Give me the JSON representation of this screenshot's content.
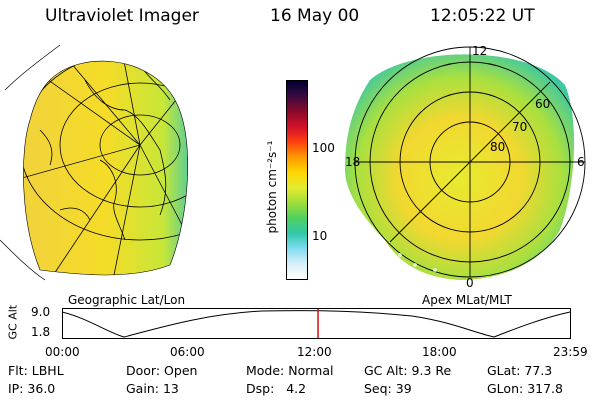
{
  "header": {
    "instrument": "Ultraviolet Imager",
    "date": "16 May 00",
    "time": "12:05:22 UT"
  },
  "colorbar": {
    "unit_label": "photon cm⁻²s⁻¹",
    "tick_labels": [
      "100",
      "10"
    ],
    "colors": [
      "#000033",
      "#3a0a40",
      "#8a0a2a",
      "#d0102a",
      "#ff4010",
      "#ff9a00",
      "#ffd400",
      "#e4ec30",
      "#9fdd3a",
      "#4fd060",
      "#30c8a8",
      "#80dcf0",
      "#d8f0f8",
      "#ffffff"
    ]
  },
  "left_panel": {
    "label": "Geographic Lat/Lon"
  },
  "right_panel": {
    "label": "Apex MLat/MLT",
    "mlt_labels": {
      "top": "12",
      "left": "18",
      "right": "6",
      "bottom": "0"
    },
    "lat_labels": [
      "60",
      "70",
      "80"
    ]
  },
  "altitude_plot": {
    "ylabel": "GC Alt",
    "ytick_top": "9.0",
    "ytick_bottom": "1.8",
    "xtick_labels": [
      "00:00",
      "06:00",
      "12:00",
      "18:00",
      "23:59"
    ],
    "current_time_fraction": 0.503
  },
  "info": {
    "row1": [
      {
        "label": "Flt:",
        "value": "LBHL"
      },
      {
        "label": "Door:",
        "value": "Open"
      },
      {
        "label": "Mode:",
        "value": "Normal"
      },
      {
        "label": "GC Alt:",
        "value": "9.3 Re"
      },
      {
        "label": "GLat:",
        "value": "77.3"
      }
    ],
    "row2": [
      {
        "label": "IP:",
        "value": "36.0"
      },
      {
        "label": "Gain:",
        "value": "13"
      },
      {
        "label": "Dsp:",
        "value": "4.2"
      },
      {
        "label": "Seq:",
        "value": "39"
      },
      {
        "label": "GLon:",
        "value": "317.8"
      }
    ]
  }
}
